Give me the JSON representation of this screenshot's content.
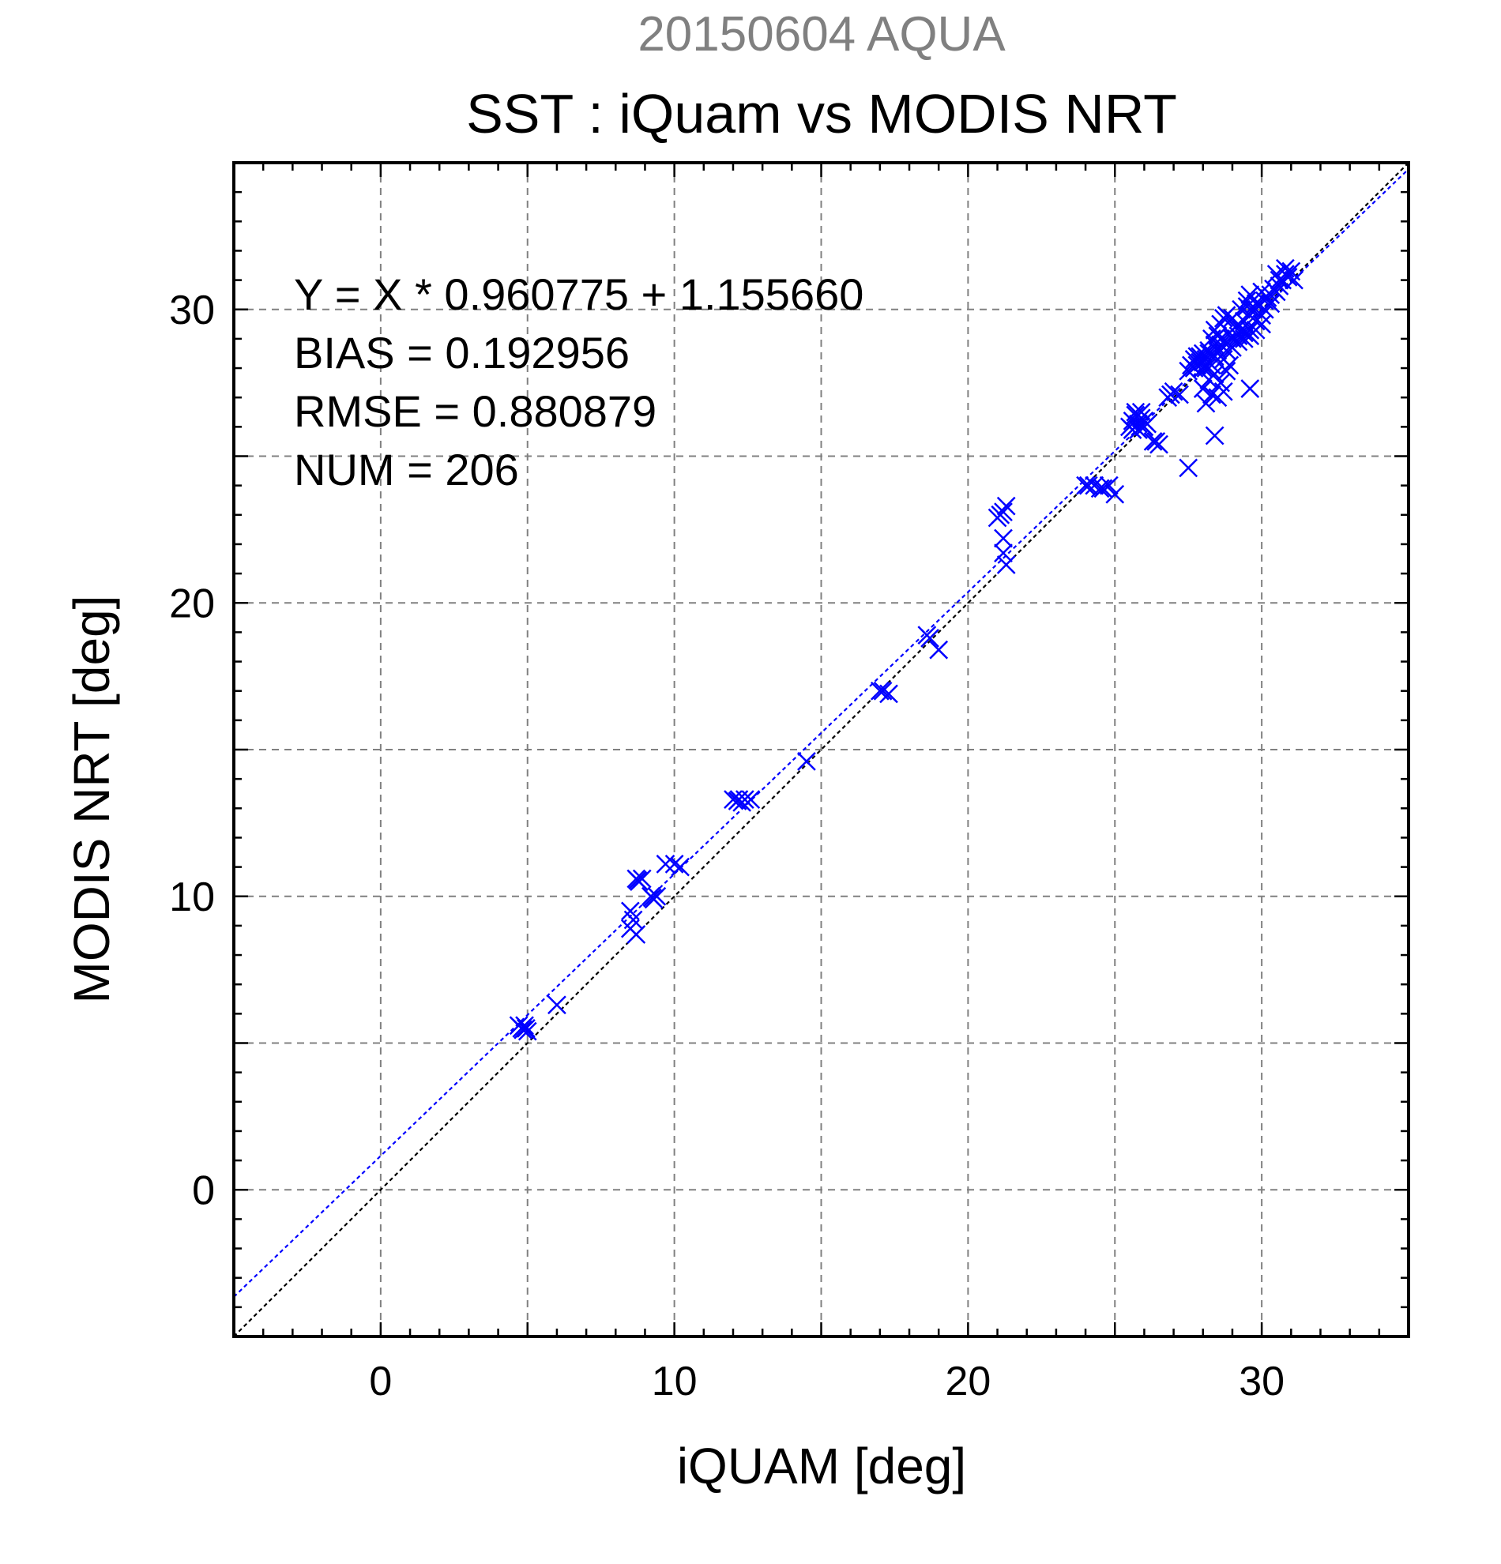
{
  "chart_data": {
    "type": "scatter",
    "supertitle": "20150604 AQUA",
    "title": "SST : iQuam vs MODIS NRT",
    "xlabel": "iQUAM [deg]",
    "ylabel": "MODIS NRT [deg]",
    "xlim": [
      -5,
      35
    ],
    "ylim": [
      -5,
      35
    ],
    "xticks": [
      0,
      10,
      20,
      30
    ],
    "yticks": [
      0,
      10,
      20,
      30
    ],
    "grid_step": 5,
    "minor_step": 1,
    "grid": true,
    "marker": "x",
    "marker_color": "#0000ff",
    "fit_color": "#0000ff",
    "identity_color": "#000000",
    "fit": {
      "slope": 0.960775,
      "intercept": 1.15566
    },
    "stats": [
      "Y = X * 0.960775 + 1.155660",
      "BIAS = 0.192956",
      "RMSE = 0.880879",
      "NUM = 206"
    ],
    "points": [
      [
        4.7,
        5.6
      ],
      [
        4.8,
        5.5
      ],
      [
        4.9,
        5.6
      ],
      [
        5.0,
        5.4
      ],
      [
        4.85,
        5.45
      ],
      [
        4.95,
        5.5
      ],
      [
        6.0,
        6.3
      ],
      [
        8.5,
        8.9
      ],
      [
        8.6,
        9.2
      ],
      [
        8.7,
        8.7
      ],
      [
        8.5,
        9.5
      ],
      [
        8.7,
        10.6
      ],
      [
        8.8,
        10.5
      ],
      [
        8.9,
        10.6
      ],
      [
        8.75,
        10.55
      ],
      [
        9.2,
        10.0
      ],
      [
        9.3,
        9.9
      ],
      [
        9.4,
        10.0
      ],
      [
        9.25,
        9.95
      ],
      [
        9.7,
        11.1
      ],
      [
        10.0,
        11.1
      ],
      [
        10.2,
        11.0
      ],
      [
        12.0,
        13.3
      ],
      [
        12.2,
        13.3
      ],
      [
        12.3,
        13.2
      ],
      [
        12.4,
        13.3
      ],
      [
        12.6,
        13.3
      ],
      [
        12.15,
        13.25
      ],
      [
        14.5,
        14.6
      ],
      [
        17.0,
        17.0
      ],
      [
        17.1,
        17.0
      ],
      [
        17.3,
        16.9
      ],
      [
        18.6,
        18.9
      ],
      [
        18.7,
        18.8
      ],
      [
        19.0,
        18.4
      ],
      [
        21.0,
        22.9
      ],
      [
        21.1,
        23.0
      ],
      [
        21.3,
        23.3
      ],
      [
        21.2,
        23.1
      ],
      [
        21.2,
        22.2
      ],
      [
        21.2,
        21.7
      ],
      [
        21.3,
        21.3
      ],
      [
        24.0,
        24.0
      ],
      [
        24.1,
        24.0
      ],
      [
        24.3,
        24.0
      ],
      [
        24.5,
        23.9
      ],
      [
        24.6,
        23.9
      ],
      [
        24.8,
        24.0
      ],
      [
        25.0,
        23.7
      ],
      [
        25.5,
        26.0
      ],
      [
        25.6,
        26.2
      ],
      [
        25.7,
        26.4
      ],
      [
        25.8,
        26.1
      ],
      [
        25.9,
        26.3
      ],
      [
        26.0,
        26.2
      ],
      [
        25.6,
        25.9
      ],
      [
        25.8,
        25.9
      ],
      [
        26.0,
        26.0
      ],
      [
        25.7,
        26.5
      ],
      [
        25.9,
        26.5
      ],
      [
        26.1,
        26.1
      ],
      [
        26.3,
        25.5
      ],
      [
        26.5,
        25.4
      ],
      [
        26.4,
        25.5
      ],
      [
        26.8,
        27.0
      ],
      [
        27.0,
        27.2
      ],
      [
        27.2,
        27.1
      ],
      [
        26.9,
        27.1
      ],
      [
        27.5,
        27.9
      ],
      [
        27.6,
        28.1
      ],
      [
        27.7,
        28.3
      ],
      [
        27.8,
        28.4
      ],
      [
        27.9,
        28.2
      ],
      [
        28.0,
        28.0
      ],
      [
        28.1,
        28.3
      ],
      [
        28.2,
        28.5
      ],
      [
        28.3,
        28.1
      ],
      [
        28.4,
        28.4
      ],
      [
        28.5,
        28.6
      ],
      [
        28.6,
        28.8
      ],
      [
        28.7,
        28.3
      ],
      [
        28.8,
        28.9
      ],
      [
        28.9,
        29.2
      ],
      [
        29.0,
        29.0
      ],
      [
        29.1,
        29.4
      ],
      [
        29.2,
        29.1
      ],
      [
        29.3,
        29.3
      ],
      [
        29.4,
        29.6
      ],
      [
        29.5,
        29.2
      ],
      [
        29.6,
        29.8
      ],
      [
        28.3,
        29.0
      ],
      [
        28.4,
        29.3
      ],
      [
        28.5,
        29.1
      ],
      [
        28.6,
        29.5
      ],
      [
        28.7,
        29.7
      ],
      [
        28.8,
        29.8
      ],
      [
        29.0,
        29.7
      ],
      [
        29.2,
        29.5
      ],
      [
        28.0,
        27.3
      ],
      [
        28.2,
        27.6
      ],
      [
        28.4,
        27.8
      ],
      [
        28.6,
        27.5
      ],
      [
        28.8,
        27.9
      ],
      [
        28.3,
        27.1
      ],
      [
        28.5,
        27.0
      ],
      [
        28.1,
        26.8
      ],
      [
        28.7,
        27.2
      ],
      [
        28.9,
        28.1
      ],
      [
        28.2,
        28.6
      ],
      [
        28.4,
        28.8
      ],
      [
        28.6,
        29.0
      ],
      [
        28.8,
        28.6
      ],
      [
        29.0,
        28.7
      ],
      [
        29.2,
        28.9
      ],
      [
        29.4,
        29.0
      ],
      [
        29.6,
        29.3
      ],
      [
        29.8,
        29.6
      ],
      [
        30.0,
        29.8
      ],
      [
        29.5,
        30.3
      ],
      [
        29.6,
        30.5
      ],
      [
        29.8,
        30.2
      ],
      [
        30.0,
        30.6
      ],
      [
        30.1,
        30.3
      ],
      [
        30.2,
        30.4
      ],
      [
        30.3,
        30.5
      ],
      [
        30.4,
        30.7
      ],
      [
        30.5,
        30.6
      ],
      [
        30.6,
        30.8
      ],
      [
        30.7,
        31.0
      ],
      [
        30.8,
        31.2
      ],
      [
        30.9,
        31.1
      ],
      [
        31.0,
        31.3
      ],
      [
        31.1,
        31.0
      ],
      [
        30.5,
        31.2
      ],
      [
        30.8,
        31.4
      ],
      [
        30.6,
        31.0
      ],
      [
        29.3,
        30.0
      ],
      [
        29.5,
        30.1
      ],
      [
        29.7,
        30.0
      ],
      [
        29.9,
        30.2
      ],
      [
        30.1,
        30.0
      ],
      [
        30.3,
        30.2
      ],
      [
        29.4,
        29.2
      ],
      [
        29.6,
        29.1
      ],
      [
        29.8,
        29.3
      ],
      [
        30.0,
        29.5
      ],
      [
        27.5,
        24.6
      ],
      [
        28.4,
        25.7
      ],
      [
        29.6,
        27.3
      ],
      [
        27.8,
        28.1
      ],
      [
        28.0,
        28.2
      ],
      [
        28.1,
        28.0
      ],
      [
        27.9,
        28.4
      ],
      [
        27.7,
        28.0
      ],
      [
        28.0,
        28.5
      ]
    ]
  }
}
